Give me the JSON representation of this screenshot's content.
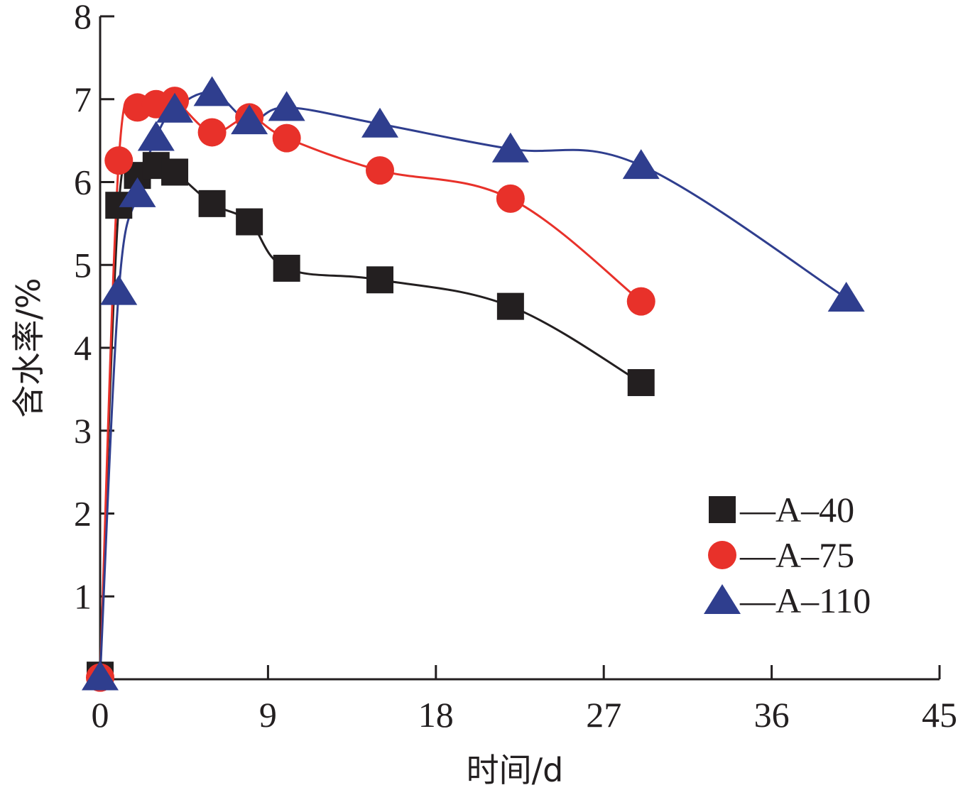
{
  "chart_data": {
    "type": "line",
    "xlabel": "时间/d",
    "ylabel": "含水率/%",
    "xlim": [
      0,
      45
    ],
    "ylim": [
      0,
      8
    ],
    "xticks": [
      0,
      9,
      18,
      27,
      36,
      45
    ],
    "yticks": [
      1,
      2,
      3,
      4,
      5,
      6,
      7,
      8
    ],
    "x_origin_label": "0",
    "grid": false,
    "legend_position": "bottom-right",
    "series": [
      {
        "name": "—A–40",
        "marker": "square",
        "color": "#231f20",
        "x": [
          0,
          1,
          2,
          3,
          4,
          6,
          8,
          10,
          15,
          22,
          29
        ],
        "y": [
          0.05,
          5.72,
          6.08,
          6.2,
          6.12,
          5.74,
          5.52,
          4.96,
          4.82,
          4.5,
          3.58
        ]
      },
      {
        "name": "—A–75",
        "marker": "circle",
        "color": "#e8312a",
        "x": [
          0,
          1,
          2,
          3,
          4,
          6,
          8,
          10,
          15,
          22,
          29
        ],
        "y": [
          0.02,
          6.26,
          6.9,
          6.94,
          6.98,
          6.6,
          6.78,
          6.53,
          6.14,
          5.8,
          4.56
        ]
      },
      {
        "name": "—A–110",
        "marker": "triangle",
        "color": "#2f3e8e",
        "x": [
          0,
          1,
          2,
          3,
          4,
          6,
          8,
          10,
          15,
          22,
          29,
          40
        ],
        "y": [
          0.03,
          4.68,
          5.86,
          6.54,
          6.88,
          7.08,
          6.74,
          6.9,
          6.7,
          6.4,
          6.2,
          4.6
        ]
      }
    ]
  }
}
